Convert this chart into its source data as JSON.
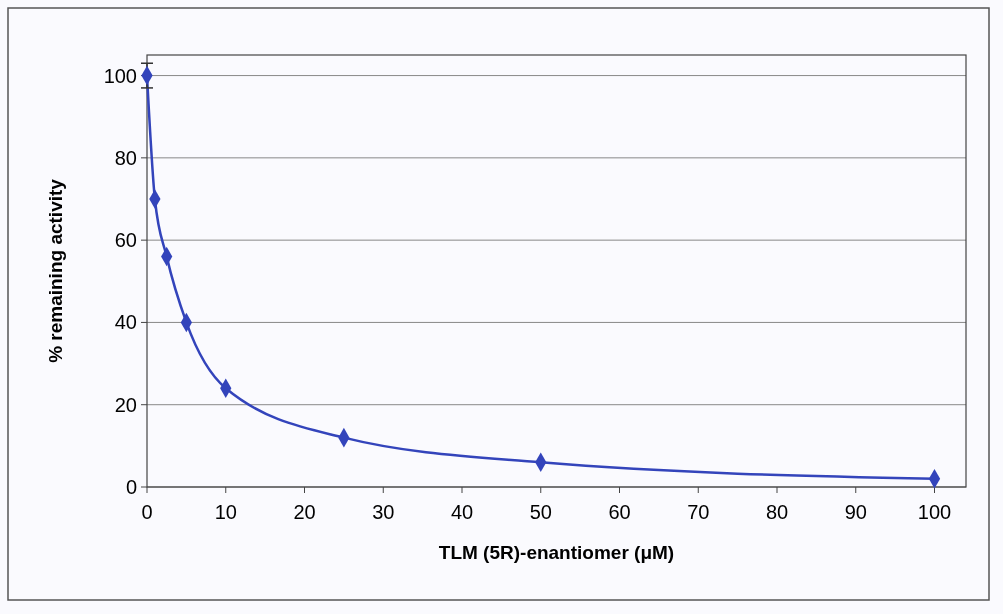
{
  "chart_data": {
    "type": "line",
    "xlabel": "TLM (5R)-enantiomer (μM)",
    "ylabel": "% remaining activity",
    "x": [
      0,
      1,
      2.5,
      5,
      10,
      25,
      50,
      100
    ],
    "series": [
      {
        "color": "#3344bb",
        "values": [
          100,
          70,
          56,
          40,
          24,
          12,
          6,
          2
        ],
        "errors": [
          3,
          null,
          null,
          null,
          null,
          null,
          null,
          null
        ]
      }
    ],
    "xlim": [
      0,
      104
    ],
    "xticks": [
      0,
      10,
      20,
      30,
      40,
      50,
      60,
      70,
      80,
      90,
      100
    ],
    "ylim": [
      0,
      105
    ],
    "yticks": [
      0,
      20,
      40,
      60,
      80,
      100
    ],
    "grid": "y",
    "marker": "diamond",
    "line_style": "solid"
  }
}
